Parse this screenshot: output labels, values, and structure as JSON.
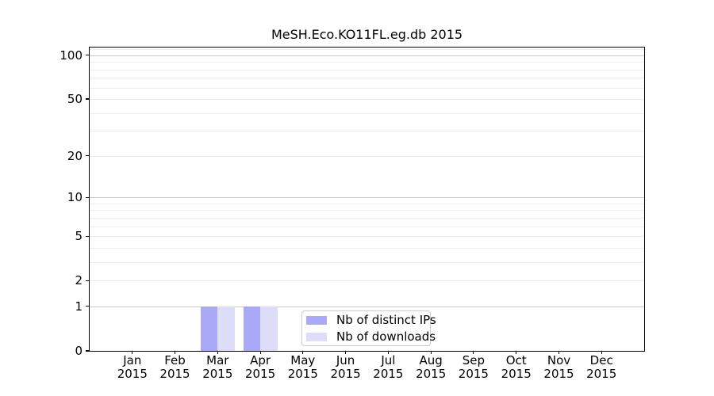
{
  "chart_data": {
    "type": "bar",
    "title": "MeSH.Eco.KO11FL.eg.db 2015",
    "categories": [
      "Jan 2015",
      "Feb 2015",
      "Mar 2015",
      "Apr 2015",
      "May 2015",
      "Jun 2015",
      "Jul 2015",
      "Aug 2015",
      "Sep 2015",
      "Oct 2015",
      "Nov 2015",
      "Dec 2015"
    ],
    "series": [
      {
        "name": "Nb of distinct IPs",
        "color": "#a9a9f7",
        "values": [
          0,
          0,
          1,
          1,
          0,
          0,
          0,
          0,
          0,
          0,
          0,
          0
        ]
      },
      {
        "name": "Nb of downloads",
        "color": "#ddddf9",
        "values": [
          0,
          0,
          1,
          1,
          0,
          0,
          0,
          0,
          0,
          0,
          0,
          0
        ]
      }
    ],
    "yscale": "log1p",
    "ylim": [
      0,
      113
    ],
    "xlim": [
      -1,
      12
    ],
    "bar_width": 0.4,
    "yticks": [
      0,
      1,
      2,
      5,
      10,
      20,
      50,
      100
    ],
    "minor_grid_values": [
      2,
      3,
      4,
      5,
      6,
      7,
      8,
      9,
      20,
      30,
      40,
      50,
      60,
      70,
      80,
      90,
      110
    ],
    "major_grid_values": [
      1,
      10,
      100
    ],
    "grid": "horizontal",
    "legend_position": "lower center-right inside plot"
  },
  "colors": {
    "minor_grid": "#ededed",
    "major_grid": "#c8c8c8",
    "axis": "#000000",
    "legend_border": "#cccccc",
    "background": "#ffffff"
  }
}
